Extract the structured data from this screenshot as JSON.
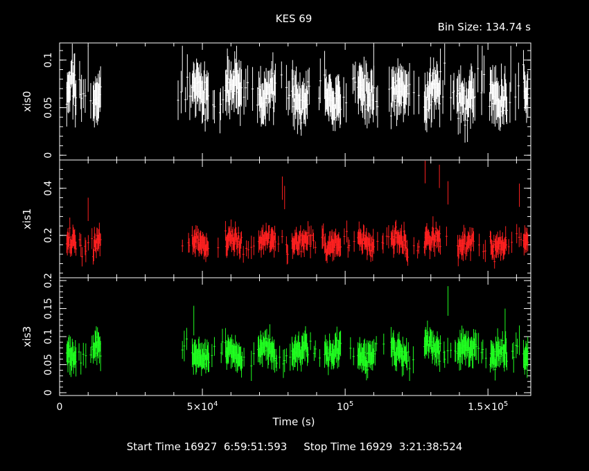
{
  "chart_data": {
    "type": "scatter",
    "title": "KES 69",
    "bin_size_label": "Bin Size: 134.74 s",
    "xlabel": "Time (s)",
    "xlim": [
      0,
      165000
    ],
    "xticks": [
      {
        "value": 0,
        "label": "0"
      },
      {
        "value": 50000,
        "label": "5×10",
        "sup": "4"
      },
      {
        "value": 100000,
        "label": "10",
        "sup": "5"
      },
      {
        "value": 150000,
        "label": "1.5×10",
        "sup": "5"
      }
    ],
    "panels": [
      {
        "name": "xis0",
        "ylabel": "xis0",
        "color": "#ffffff",
        "ylim": [
          -0.005,
          0.118
        ],
        "yticks": [
          0,
          0.05,
          0.1
        ],
        "ytick_labels": [
          "0",
          "0.05",
          "0.1"
        ],
        "mean": 0.065,
        "spread": 0.018,
        "err": 0.022,
        "spikes": [
          [
            10000,
            0.115
          ],
          [
            43000,
            0.115
          ],
          [
            62000,
            0.115
          ],
          [
            110000,
            0.115
          ],
          [
            148000,
            0.115
          ],
          [
            158000,
            0.115
          ]
        ]
      },
      {
        "name": "xis1",
        "ylabel": "xis1",
        "color": "#ff2020",
        "ylim": [
          0.02,
          0.52
        ],
        "yticks": [
          0.2,
          0.4
        ],
        "ytick_labels": [
          "0.2",
          "0.4"
        ],
        "mean": 0.17,
        "spread": 0.04,
        "err": 0.045,
        "spikes": [
          [
            10000,
            0.36
          ],
          [
            78000,
            0.45
          ],
          [
            78800,
            0.41
          ],
          [
            128000,
            0.52
          ],
          [
            133000,
            0.5
          ],
          [
            136000,
            0.43
          ],
          [
            161000,
            0.42
          ]
        ]
      },
      {
        "name": "xis3",
        "ylabel": "xis3",
        "color": "#20ff20",
        "ylim": [
          -0.005,
          0.205
        ],
        "yticks": [
          0,
          0.05,
          0.1,
          0.15,
          0.2
        ],
        "ytick_labels": [
          "0",
          "0.05",
          "0.1",
          "0.15",
          "0.2"
        ],
        "mean": 0.072,
        "spread": 0.018,
        "err": 0.024,
        "spikes": [
          [
            47000,
            0.155
          ],
          [
            136000,
            0.19
          ],
          [
            156000,
            0.15
          ],
          [
            161000,
            0.12
          ]
        ]
      }
    ],
    "segments": [
      [
        2500,
        14500
      ],
      [
        41500,
        164000
      ]
    ]
  },
  "footer": {
    "start_label": "Start Time 16927  6:59:51:593",
    "stop_label": "Stop Time 16929  3:21:38:524"
  }
}
